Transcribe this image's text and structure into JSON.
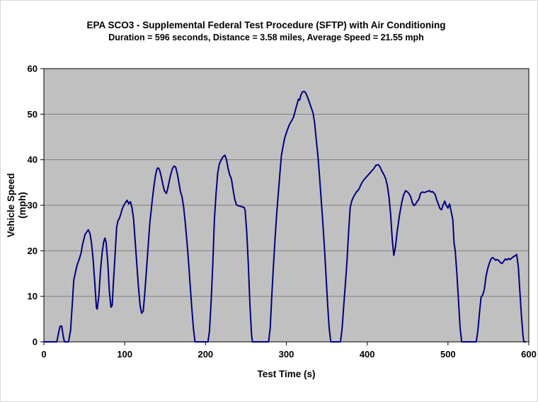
{
  "title": "EPA SCO3 - Supplemental Federal Test Procedure (SFTP) with Air Conditioning",
  "subtitle": "Duration = 596 seconds, Distance = 3.58 miles, Average Speed = 21.55 mph",
  "x_axis": {
    "label": "Test Time (s)",
    "min": 0,
    "max": 600,
    "tick_step": 100,
    "ticks": [
      0,
      100,
      200,
      300,
      400,
      500,
      600
    ]
  },
  "y_axis": {
    "label_line1": "Vehicle Speed",
    "label_line2": "(mph)",
    "min": 0,
    "max": 60,
    "tick_step": 10,
    "ticks": [
      0,
      10,
      20,
      30,
      40,
      50,
      60
    ]
  },
  "colors": {
    "background": "#ffffff",
    "plot_background": "#c0c0c0",
    "gridline": "#808080",
    "axis": "#000000",
    "series_line": "#000080",
    "text": "#000000"
  },
  "chart_data": {
    "type": "line",
    "title": "EPA SCO3 - Supplemental Federal Test Procedure (SFTP) with Air Conditioning",
    "subtitle": "Duration = 596 seconds, Distance = 3.58 miles, Average Speed = 21.55 mph",
    "xlabel": "Test Time (s)",
    "ylabel": "Vehicle Speed (mph)",
    "xlim": [
      0,
      600
    ],
    "ylim": [
      0,
      60
    ],
    "grid": "horizontal",
    "legend": "none",
    "series": [
      {
        "name": "Vehicle Speed",
        "color": "#000080",
        "points": [
          [
            0,
            0
          ],
          [
            16,
            0
          ],
          [
            18,
            1.8
          ],
          [
            20,
            3.4
          ],
          [
            22,
            3.5
          ],
          [
            24,
            1.2
          ],
          [
            25.5,
            0
          ],
          [
            30.5,
            0
          ],
          [
            33,
            2.5
          ],
          [
            35,
            8
          ],
          [
            37,
            13.5
          ],
          [
            39,
            15.2
          ],
          [
            41,
            16.8
          ],
          [
            44,
            18.3
          ],
          [
            46,
            19.5
          ],
          [
            48,
            21.5
          ],
          [
            51,
            23.6
          ],
          [
            54,
            24.4
          ],
          [
            55,
            24.6
          ],
          [
            57,
            23.8
          ],
          [
            59,
            21.5
          ],
          [
            61,
            18
          ],
          [
            63,
            13
          ],
          [
            65,
            7.5
          ],
          [
            66,
            7.2
          ],
          [
            68,
            10
          ],
          [
            70,
            15.5
          ],
          [
            72,
            19.5
          ],
          [
            74,
            22
          ],
          [
            75.5,
            22.8
          ],
          [
            77,
            21.8
          ],
          [
            79,
            17.5
          ],
          [
            81,
            11
          ],
          [
            83,
            7.6
          ],
          [
            84.5,
            8
          ],
          [
            86,
            13
          ],
          [
            88,
            19
          ],
          [
            90,
            25.2
          ],
          [
            92,
            26.8
          ],
          [
            93,
            26.9
          ],
          [
            95,
            28
          ],
          [
            97,
            29.2
          ],
          [
            99,
            30
          ],
          [
            101,
            30.6
          ],
          [
            103,
            31.1
          ],
          [
            105,
            30.3
          ],
          [
            107,
            30.8
          ],
          [
            109,
            29.5
          ],
          [
            111,
            27
          ],
          [
            113,
            22
          ],
          [
            115,
            17
          ],
          [
            117,
            12
          ],
          [
            119,
            8
          ],
          [
            121,
            6.3
          ],
          [
            123,
            6.8
          ],
          [
            125,
            11
          ],
          [
            127,
            16
          ],
          [
            129,
            21
          ],
          [
            131,
            26
          ],
          [
            134,
            31
          ],
          [
            136,
            34
          ],
          [
            138,
            36.5
          ],
          [
            140,
            38
          ],
          [
            141.5,
            38.2
          ],
          [
            143,
            37.8
          ],
          [
            145,
            36.5
          ],
          [
            147,
            34.8
          ],
          [
            149,
            33.2
          ],
          [
            151.5,
            32.6
          ],
          [
            153,
            33.5
          ],
          [
            155,
            35.2
          ],
          [
            157,
            36.8
          ],
          [
            159,
            38
          ],
          [
            161,
            38.6
          ],
          [
            163,
            38.4
          ],
          [
            165,
            37
          ],
          [
            167,
            35
          ],
          [
            169,
            33
          ],
          [
            171,
            31.8
          ],
          [
            173,
            29.5
          ],
          [
            175,
            26
          ],
          [
            177,
            22
          ],
          [
            179,
            17.5
          ],
          [
            181,
            12.5
          ],
          [
            183,
            7.5
          ],
          [
            185,
            3
          ],
          [
            187,
            0
          ],
          [
            203,
            0
          ],
          [
            205,
            2.5
          ],
          [
            207,
            9
          ],
          [
            209,
            17
          ],
          [
            211,
            27
          ],
          [
            213,
            32.5
          ],
          [
            215,
            37
          ],
          [
            217,
            39
          ],
          [
            220,
            40.2
          ],
          [
            222,
            40.7
          ],
          [
            224,
            41
          ],
          [
            226,
            40
          ],
          [
            228,
            38
          ],
          [
            230,
            36.6
          ],
          [
            232,
            35.8
          ],
          [
            234,
            33.5
          ],
          [
            236,
            31.5
          ],
          [
            238,
            30.2
          ],
          [
            240,
            29.9
          ],
          [
            243,
            29.8
          ],
          [
            246,
            29.6
          ],
          [
            248,
            29.5
          ],
          [
            249,
            28.8
          ],
          [
            251,
            24
          ],
          [
            253,
            17
          ],
          [
            255,
            8
          ],
          [
            257,
            1.5
          ],
          [
            258,
            0
          ],
          [
            278,
            0
          ],
          [
            280,
            3
          ],
          [
            282,
            10
          ],
          [
            284,
            16.5
          ],
          [
            286,
            22.5
          ],
          [
            288,
            28
          ],
          [
            290,
            32.5
          ],
          [
            292,
            37
          ],
          [
            294,
            41
          ],
          [
            296,
            43
          ],
          [
            298,
            44.8
          ],
          [
            301,
            46.4
          ],
          [
            304,
            47.8
          ],
          [
            307,
            48.7
          ],
          [
            309,
            49.4
          ],
          [
            311,
            50.8
          ],
          [
            313,
            52
          ],
          [
            315,
            53.3
          ],
          [
            316.5,
            53.1
          ],
          [
            318,
            54.2
          ],
          [
            320,
            54.9
          ],
          [
            322,
            55
          ],
          [
            324,
            54.7
          ],
          [
            327,
            53.4
          ],
          [
            330,
            51.8
          ],
          [
            333,
            50.3
          ],
          [
            335,
            48
          ],
          [
            337,
            44.5
          ],
          [
            339,
            41
          ],
          [
            341,
            36.5
          ],
          [
            343,
            31.5
          ],
          [
            345,
            26.5
          ],
          [
            347,
            21
          ],
          [
            349,
            15
          ],
          [
            351,
            8.5
          ],
          [
            353,
            3
          ],
          [
            355,
            0
          ],
          [
            367,
            0
          ],
          [
            369,
            3
          ],
          [
            371,
            8
          ],
          [
            373,
            12.5
          ],
          [
            375,
            17.5
          ],
          [
            377,
            24
          ],
          [
            379,
            29.5
          ],
          [
            381,
            31
          ],
          [
            383,
            31.8
          ],
          [
            385,
            32.4
          ],
          [
            387,
            33
          ],
          [
            389,
            33.3
          ],
          [
            391,
            34
          ],
          [
            393,
            34.8
          ],
          [
            396,
            35.6
          ],
          [
            399,
            36.2
          ],
          [
            402,
            36.8
          ],
          [
            405,
            37.4
          ],
          [
            408,
            38
          ],
          [
            411,
            38.8
          ],
          [
            414,
            38.9
          ],
          [
            416,
            38.4
          ],
          [
            418,
            37.6
          ],
          [
            421,
            36.6
          ],
          [
            423,
            35.8
          ],
          [
            425,
            34.3
          ],
          [
            427,
            31.8
          ],
          [
            429,
            28
          ],
          [
            431,
            22.5
          ],
          [
            433,
            19
          ],
          [
            435,
            20.8
          ],
          [
            437,
            24
          ],
          [
            440,
            27.8
          ],
          [
            443,
            30.8
          ],
          [
            445,
            32.2
          ],
          [
            447.5,
            33.2
          ],
          [
            450,
            32.9
          ],
          [
            452,
            32.5
          ],
          [
            454,
            31.8
          ],
          [
            456,
            30.5
          ],
          [
            458,
            29.9
          ],
          [
            460,
            30.3
          ],
          [
            462,
            30.9
          ],
          [
            464,
            31.3
          ],
          [
            466,
            32.6
          ],
          [
            468,
            32.9
          ],
          [
            471,
            32.8
          ],
          [
            474,
            33
          ],
          [
            477,
            33.2
          ],
          [
            479,
            32.9
          ],
          [
            481,
            33
          ],
          [
            484,
            32.4
          ],
          [
            486,
            31.2
          ],
          [
            488,
            30.3
          ],
          [
            490,
            29.3
          ],
          [
            492,
            29
          ],
          [
            494,
            30.1
          ],
          [
            496,
            30.9
          ],
          [
            498,
            29.9
          ],
          [
            500,
            29.4
          ],
          [
            502,
            30.3
          ],
          [
            504,
            28.6
          ],
          [
            506,
            26.8
          ],
          [
            507.5,
            21.7
          ],
          [
            509,
            20
          ],
          [
            511,
            15
          ],
          [
            513,
            9
          ],
          [
            515,
            3
          ],
          [
            517,
            0
          ],
          [
            535,
            0
          ],
          [
            537,
            2.5
          ],
          [
            539,
            6.5
          ],
          [
            541,
            9.8
          ],
          [
            543,
            10.3
          ],
          [
            545,
            11.5
          ],
          [
            547,
            14.3
          ],
          [
            549,
            16
          ],
          [
            551,
            17.2
          ],
          [
            553,
            18.1
          ],
          [
            555,
            18.5
          ],
          [
            557,
            18.3
          ],
          [
            559,
            17.9
          ],
          [
            561,
            18.1
          ],
          [
            563,
            17.8
          ],
          [
            565,
            17.4
          ],
          [
            567,
            17.2
          ],
          [
            569,
            17.7
          ],
          [
            571,
            18.2
          ],
          [
            573,
            18
          ],
          [
            575,
            18.3
          ],
          [
            577,
            18.1
          ],
          [
            579,
            18.4
          ],
          [
            581,
            18.7
          ],
          [
            583,
            18.9
          ],
          [
            585,
            19.2
          ],
          [
            587,
            16.5
          ],
          [
            589,
            11
          ],
          [
            591,
            5.5
          ],
          [
            593,
            1
          ],
          [
            594,
            0
          ],
          [
            596,
            0
          ]
        ]
      }
    ]
  }
}
